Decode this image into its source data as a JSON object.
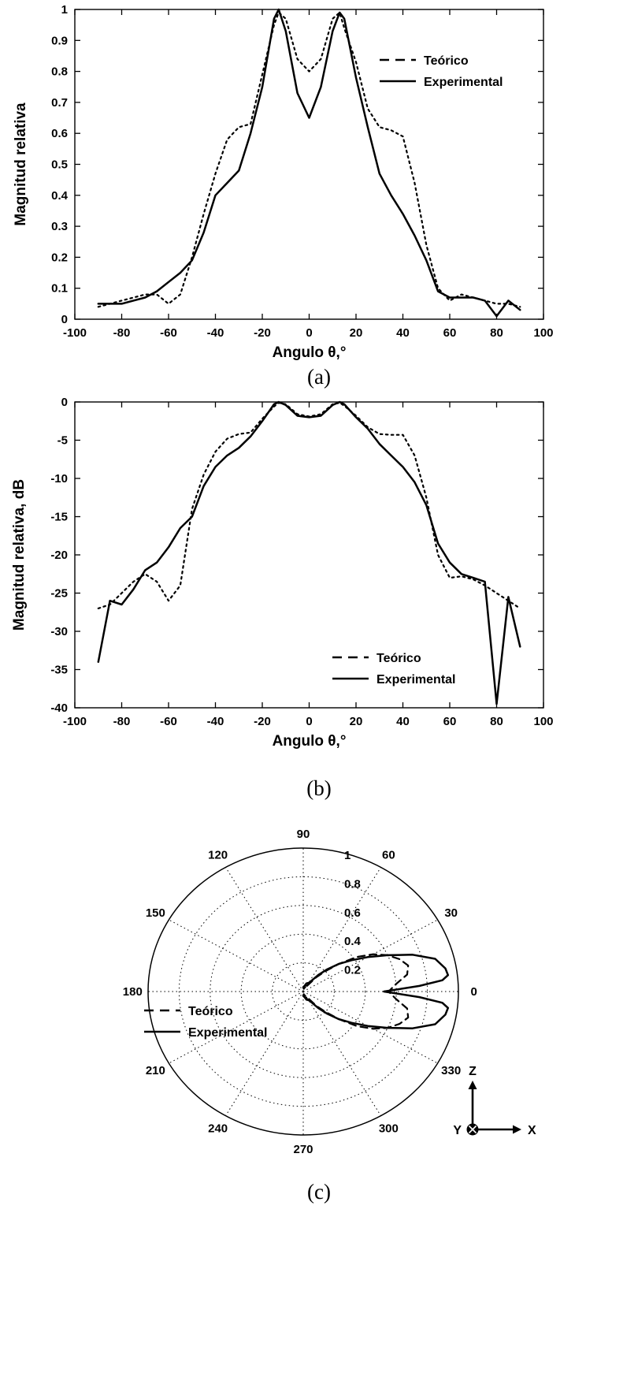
{
  "captions": {
    "a": "(a)",
    "b": "(b)",
    "c": "(c)"
  },
  "colors": {
    "line": "#000000",
    "background": "#ffffff"
  },
  "chart_data": [
    {
      "id": "chart-a",
      "type": "line",
      "title": "",
      "xlabel": "Angulo θ,°",
      "ylabel": "Magnitud relativa",
      "xlim": [
        -100,
        100
      ],
      "ylim": [
        0,
        1
      ],
      "grid": false,
      "xticks": [
        -100,
        -80,
        -60,
        -40,
        -20,
        0,
        20,
        40,
        60,
        80,
        100
      ],
      "yticks": [
        0,
        0.1,
        0.2,
        0.3,
        0.4,
        0.5,
        0.6,
        0.7,
        0.8,
        0.9,
        1
      ],
      "legend": {
        "position": "top-right",
        "entries": [
          {
            "label": "Teórico",
            "style": "dashed"
          },
          {
            "label": "Experimental",
            "style": "solid"
          }
        ]
      },
      "series": [
        {
          "name": "Teórico",
          "key": "teorico",
          "style": "dashed",
          "x": [
            -90,
            -85,
            -80,
            -75,
            -70,
            -65,
            -60,
            -55,
            -50,
            -45,
            -40,
            -35,
            -30,
            -25,
            -20,
            -15,
            -13,
            -10,
            -5,
            0,
            5,
            10,
            13,
            15,
            20,
            25,
            30,
            35,
            40,
            45,
            50,
            55,
            60,
            65,
            70,
            75,
            80,
            85,
            90
          ],
          "y": [
            0.04,
            0.05,
            0.06,
            0.07,
            0.08,
            0.08,
            0.05,
            0.08,
            0.2,
            0.34,
            0.47,
            0.58,
            0.62,
            0.63,
            0.79,
            0.95,
            0.99,
            0.97,
            0.84,
            0.8,
            0.84,
            0.97,
            0.99,
            0.94,
            0.83,
            0.68,
            0.62,
            0.61,
            0.59,
            0.44,
            0.24,
            0.1,
            0.06,
            0.08,
            0.07,
            0.06,
            0.05,
            0.05,
            0.04
          ]
        },
        {
          "name": "Experimental",
          "key": "experimental",
          "style": "solid",
          "x": [
            -90,
            -85,
            -80,
            -75,
            -70,
            -65,
            -60,
            -55,
            -50,
            -45,
            -40,
            -35,
            -30,
            -25,
            -20,
            -15,
            -13,
            -10,
            -5,
            0,
            5,
            10,
            13,
            15,
            20,
            25,
            30,
            35,
            40,
            45,
            50,
            55,
            60,
            65,
            70,
            75,
            80,
            85,
            90
          ],
          "y": [
            0.05,
            0.05,
            0.05,
            0.06,
            0.07,
            0.09,
            0.12,
            0.15,
            0.19,
            0.28,
            0.4,
            0.44,
            0.48,
            0.6,
            0.75,
            0.97,
            1.0,
            0.93,
            0.73,
            0.65,
            0.75,
            0.93,
            0.99,
            0.97,
            0.78,
            0.62,
            0.47,
            0.4,
            0.34,
            0.27,
            0.19,
            0.09,
            0.07,
            0.07,
            0.07,
            0.06,
            0.01,
            0.06,
            0.03
          ]
        }
      ]
    },
    {
      "id": "chart-b",
      "type": "line",
      "title": "",
      "xlabel": "Angulo θ,°",
      "ylabel": "Magnitud relativa, dB",
      "xlim": [
        -100,
        100
      ],
      "ylim": [
        -40,
        0
      ],
      "grid": false,
      "xticks": [
        -100,
        -80,
        -60,
        -40,
        -20,
        0,
        20,
        40,
        60,
        80,
        100
      ],
      "yticks": [
        0,
        -5,
        -10,
        -15,
        -20,
        -25,
        -30,
        -35,
        -40
      ],
      "legend": {
        "position": "bottom-center-right",
        "entries": [
          {
            "label": "Teórico",
            "style": "dashed"
          },
          {
            "label": "Experimental",
            "style": "solid"
          }
        ]
      },
      "series": [
        {
          "name": "Teórico",
          "key": "teorico",
          "style": "dashed",
          "x": [
            -90,
            -85,
            -80,
            -75,
            -70,
            -65,
            -60,
            -55,
            -50,
            -45,
            -40,
            -35,
            -30,
            -25,
            -20,
            -15,
            -13,
            -10,
            -5,
            0,
            5,
            10,
            13,
            15,
            20,
            25,
            30,
            35,
            40,
            45,
            50,
            55,
            60,
            65,
            70,
            75,
            80,
            85,
            90
          ],
          "y": [
            -27,
            -26.5,
            -25,
            -23.5,
            -22.5,
            -23.5,
            -26,
            -24,
            -14,
            -9.5,
            -6.5,
            -4.8,
            -4.2,
            -4,
            -2.2,
            -0.6,
            -0.1,
            -0.3,
            -1.6,
            -1.9,
            -1.6,
            -0.3,
            -0.1,
            -0.5,
            -1.8,
            -3.3,
            -4.2,
            -4.3,
            -4.3,
            -7,
            -12.5,
            -20,
            -23,
            -22.8,
            -23.2,
            -24,
            -25,
            -26,
            -27
          ]
        },
        {
          "name": "Experimental",
          "key": "experimental",
          "style": "solid",
          "x": [
            -90,
            -85,
            -80,
            -75,
            -70,
            -65,
            -60,
            -55,
            -50,
            -45,
            -40,
            -35,
            -30,
            -25,
            -20,
            -15,
            -13,
            -10,
            -5,
            0,
            5,
            10,
            13,
            15,
            20,
            25,
            30,
            35,
            40,
            45,
            50,
            55,
            60,
            65,
            70,
            75,
            80,
            85,
            90
          ],
          "y": [
            -34,
            -26,
            -26.5,
            -24.5,
            -22,
            -21,
            -19,
            -16.5,
            -15,
            -11,
            -8.5,
            -7,
            -6,
            -4.5,
            -2.5,
            -0.3,
            0,
            -0.4,
            -1.8,
            -2,
            -1.8,
            -0.4,
            0,
            -0.3,
            -2,
            -3.5,
            -5.5,
            -7,
            -8.5,
            -10.5,
            -13.5,
            -18.5,
            -21,
            -22.5,
            -23,
            -23.5,
            -39.5,
            -25.5,
            -32
          ]
        }
      ]
    },
    {
      "id": "chart-c",
      "type": "polar",
      "title": "",
      "angle_labels": [
        0,
        30,
        60,
        90,
        120,
        150,
        180,
        210,
        240,
        270,
        300,
        330
      ],
      "radial_ticks": [
        0.2,
        0.4,
        0.6,
        0.8,
        1
      ],
      "rlim": [
        0,
        1
      ],
      "grid": true,
      "legend": {
        "position": "left",
        "entries": [
          {
            "label": "Teórico",
            "style": "dashed"
          },
          {
            "label": "Experimental",
            "style": "solid"
          }
        ]
      },
      "axis_icon": {
        "x_label": "X",
        "y_label": "Y",
        "z_label": "Z"
      },
      "series": [
        {
          "name": "Teórico",
          "key": "teorico",
          "style": "dashed",
          "theta_deg": [
            -90,
            -80,
            -70,
            -60,
            -50,
            -45,
            -40,
            -35,
            -30,
            -25,
            -20,
            -15,
            -10,
            -5,
            0,
            5,
            10,
            15,
            20,
            25,
            30,
            35,
            40,
            45,
            50,
            60,
            70,
            80,
            90
          ],
          "r": [
            0.03,
            0.04,
            0.06,
            0.04,
            0.13,
            0.2,
            0.3,
            0.42,
            0.52,
            0.6,
            0.66,
            0.7,
            0.68,
            0.6,
            0.55,
            0.6,
            0.68,
            0.7,
            0.66,
            0.6,
            0.52,
            0.42,
            0.3,
            0.2,
            0.13,
            0.04,
            0.06,
            0.04,
            0.03
          ]
        },
        {
          "name": "Experimental",
          "key": "experimental",
          "style": "solid",
          "theta_deg": [
            -90,
            -80,
            -70,
            -60,
            -55,
            -50,
            -45,
            -40,
            -35,
            -30,
            -25,
            -20,
            -15,
            -10,
            -7,
            -5,
            -3,
            0,
            3,
            5,
            7,
            10,
            15,
            20,
            25,
            30,
            35,
            40,
            45,
            50,
            55,
            60,
            70,
            80,
            90
          ],
          "r": [
            0.03,
            0.02,
            0.06,
            0.07,
            0.09,
            0.15,
            0.22,
            0.3,
            0.38,
            0.48,
            0.6,
            0.75,
            0.88,
            0.93,
            0.94,
            0.9,
            0.75,
            0.52,
            0.75,
            0.9,
            0.94,
            0.93,
            0.88,
            0.75,
            0.6,
            0.48,
            0.38,
            0.3,
            0.22,
            0.15,
            0.09,
            0.07,
            0.06,
            0.02,
            0.03
          ]
        }
      ]
    }
  ]
}
